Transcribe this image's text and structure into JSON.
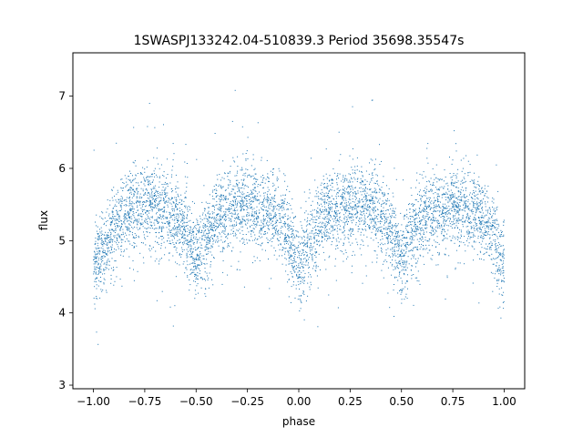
{
  "chart_data": {
    "type": "scatter",
    "title": "1SWASPJ133242.04-510839.3 Period 35698.35547s",
    "xlabel": "phase",
    "ylabel": "flux",
    "xlim": [
      -1.1,
      1.1
    ],
    "ylim": [
      2.95,
      7.6
    ],
    "xticks": [
      -1.0,
      -0.75,
      -0.5,
      -0.25,
      0.0,
      0.25,
      0.5,
      0.75,
      1.0
    ],
    "xtick_labels": [
      "−1.00",
      "−0.75",
      "−0.50",
      "−0.25",
      "0.00",
      "0.25",
      "0.50",
      "0.75",
      "1.00"
    ],
    "yticks": [
      3,
      4,
      5,
      6,
      7
    ],
    "ytick_labels": [
      "3",
      "4",
      "5",
      "6",
      "7"
    ],
    "grid": false,
    "legend": "none",
    "marker_color": "#1f77b4",
    "series": [
      {
        "x": [
          -1.0,
          -0.95,
          -0.9,
          -0.85,
          -0.8,
          -0.75,
          -0.7,
          -0.65,
          -0.6,
          -0.55,
          -0.5,
          -0.45,
          -0.4,
          -0.35,
          -0.3,
          -0.25,
          -0.2,
          -0.15,
          -0.1,
          -0.05,
          0.0,
          0.05,
          0.1,
          0.15,
          0.2,
          0.25,
          0.3,
          0.35,
          0.4,
          0.45,
          0.5,
          0.55,
          0.6,
          0.65,
          0.7,
          0.75,
          0.8,
          0.85,
          0.9,
          0.95,
          1.0
        ],
        "y": [
          4.6,
          4.9,
          5.15,
          5.35,
          5.45,
          5.5,
          5.5,
          5.45,
          5.35,
          5.1,
          4.75,
          5.05,
          5.3,
          5.4,
          5.45,
          5.5,
          5.45,
          5.4,
          5.3,
          5.05,
          4.6,
          4.95,
          5.25,
          5.4,
          5.45,
          5.5,
          5.5,
          5.45,
          5.35,
          5.1,
          4.75,
          5.05,
          5.3,
          5.4,
          5.45,
          5.5,
          5.45,
          5.4,
          5.3,
          5.05,
          4.6
        ]
      }
    ]
  }
}
